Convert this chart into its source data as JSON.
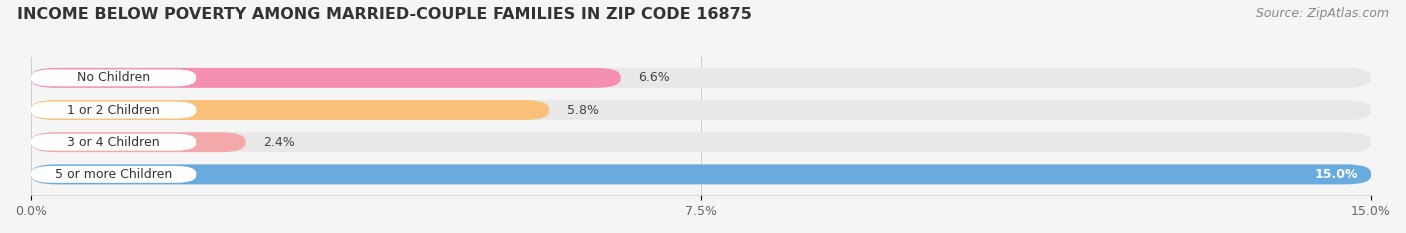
{
  "title": "INCOME BELOW POVERTY AMONG MARRIED-COUPLE FAMILIES IN ZIP CODE 16875",
  "source": "Source: ZipAtlas.com",
  "categories": [
    "No Children",
    "1 or 2 Children",
    "3 or 4 Children",
    "5 or more Children"
  ],
  "values": [
    6.6,
    5.8,
    2.4,
    15.0
  ],
  "bar_colors": [
    "#f48fb1",
    "#f9c278",
    "#f4a9a8",
    "#6aabdf"
  ],
  "bar_bg_color": "#e8e8e8",
  "xlim": [
    0,
    15.0
  ],
  "xticks": [
    0.0,
    7.5,
    15.0
  ],
  "xticklabels": [
    "0.0%",
    "7.5%",
    "15.0%"
  ],
  "title_fontsize": 11.5,
  "source_fontsize": 9,
  "label_fontsize": 9,
  "value_fontsize": 9,
  "background_color": "#f5f5f5",
  "bar_height": 0.62,
  "value_inside_last": true
}
